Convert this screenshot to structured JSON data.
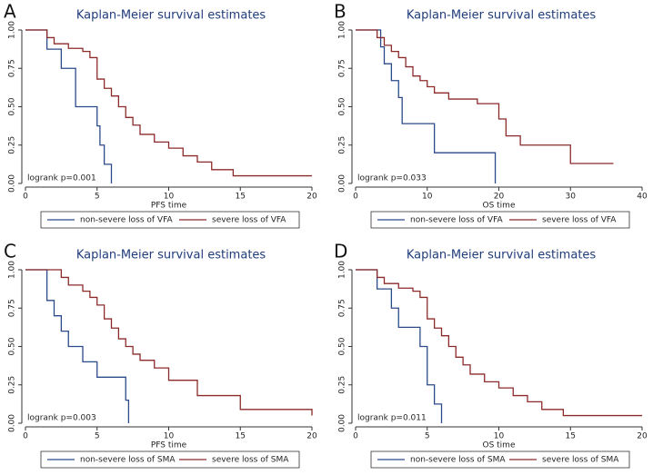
{
  "chart_data": [
    {
      "type": "line",
      "drawstyle": "steps-post",
      "panel_label": "A",
      "title": "Kaplan-Meier survival estimates",
      "xlabel": "PFS time",
      "annotation": "logrank p=0.001",
      "xlim": [
        0,
        20
      ],
      "ylim": [
        0,
        1
      ],
      "xticks": [
        0,
        5,
        10,
        15,
        20
      ],
      "yticks": [
        {
          "value": 0,
          "label": "0.00"
        },
        {
          "value": 0.25,
          "label": "0.25"
        },
        {
          "value": 0.5,
          "label": "0.50"
        },
        {
          "value": 0.75,
          "label": "0.75"
        },
        {
          "value": 1,
          "label": "1.00"
        }
      ],
      "series": [
        {
          "name": "non-severe loss of VFA",
          "color": "#2b4a8a",
          "x": [
            0,
            1.5,
            2.5,
            3.5,
            5.0,
            5.2,
            5.5,
            6.0
          ],
          "values": [
            1,
            0.875,
            0.75,
            0.5,
            0.375,
            0.25,
            0.125,
            0
          ]
        },
        {
          "name": "severe loss of VFA",
          "color": "#8c2a2a",
          "x": [
            0,
            1.5,
            2,
            3,
            4,
            4.5,
            5,
            5.5,
            6,
            6.5,
            7,
            7.5,
            8,
            9,
            10,
            11,
            12,
            13,
            14.5,
            20
          ],
          "values": [
            1,
            0.95,
            0.91,
            0.88,
            0.86,
            0.82,
            0.68,
            0.62,
            0.57,
            0.5,
            0.43,
            0.38,
            0.32,
            0.27,
            0.23,
            0.18,
            0.14,
            0.09,
            0.05,
            0.05
          ]
        }
      ]
    },
    {
      "type": "line",
      "drawstyle": "steps-post",
      "panel_label": "B",
      "title": "Kaplan-Meier survival estimates",
      "xlabel": "OS time",
      "annotation": "logrank p=0.033",
      "xlim": [
        0,
        40
      ],
      "ylim": [
        0,
        1
      ],
      "xticks": [
        0,
        10,
        20,
        30,
        40
      ],
      "yticks": [
        {
          "value": 0,
          "label": "0.00"
        },
        {
          "value": 0.25,
          "label": "0.25"
        },
        {
          "value": 0.5,
          "label": "0.50"
        },
        {
          "value": 0.75,
          "label": "0.75"
        },
        {
          "value": 1,
          "label": "1.00"
        }
      ],
      "series": [
        {
          "name": "non-severe loss of VFA",
          "color": "#2b4a8a",
          "x": [
            0,
            3.5,
            4,
            5,
            6,
            6.5,
            11,
            19.5
          ],
          "values": [
            1,
            0.89,
            0.78,
            0.67,
            0.56,
            0.39,
            0.2,
            0
          ]
        },
        {
          "name": "severe loss of VFA",
          "color": "#8c2a2a",
          "x": [
            0,
            3,
            4,
            5,
            6,
            7,
            8,
            9,
            10,
            11,
            13,
            17,
            20,
            21,
            23,
            30,
            36
          ],
          "values": [
            1,
            0.95,
            0.9,
            0.86,
            0.82,
            0.76,
            0.7,
            0.67,
            0.63,
            0.59,
            0.55,
            0.52,
            0.42,
            0.31,
            0.25,
            0.13,
            0.13
          ]
        }
      ]
    },
    {
      "type": "line",
      "drawstyle": "steps-post",
      "panel_label": "C",
      "title": "Kaplan-Meier survival estimates",
      "xlabel": "PFS time",
      "annotation": "logrank p=0.003",
      "xlim": [
        0,
        20
      ],
      "ylim": [
        0,
        1
      ],
      "xticks": [
        0,
        5,
        10,
        15,
        20
      ],
      "yticks": [
        {
          "value": 0,
          "label": "0.00"
        },
        {
          "value": 0.25,
          "label": "0.25"
        },
        {
          "value": 0.5,
          "label": "0.50"
        },
        {
          "value": 0.75,
          "label": "0.75"
        },
        {
          "value": 1,
          "label": "1.00"
        }
      ],
      "series": [
        {
          "name": "non-severe loss of SMA",
          "color": "#2b4a8a",
          "x": [
            0,
            1.5,
            2,
            2.5,
            3,
            4,
            5,
            7,
            7.2
          ],
          "values": [
            1,
            0.8,
            0.7,
            0.6,
            0.5,
            0.4,
            0.3,
            0.15,
            0
          ]
        },
        {
          "name": "severe loss of SMA",
          "color": "#8c2a2a",
          "x": [
            0,
            2.5,
            3,
            4,
            4.5,
            5,
            5.5,
            6,
            6.5,
            7,
            7.5,
            8,
            9,
            10,
            12,
            15,
            20
          ],
          "values": [
            1,
            0.95,
            0.9,
            0.86,
            0.82,
            0.77,
            0.68,
            0.62,
            0.55,
            0.5,
            0.45,
            0.41,
            0.36,
            0.28,
            0.18,
            0.09,
            0.05
          ]
        }
      ]
    },
    {
      "type": "line",
      "drawstyle": "steps-post",
      "panel_label": "D",
      "title": "Kaplan-Meier survival estimates",
      "xlabel": "OS time",
      "annotation": "logrank p=0.011",
      "xlim": [
        0,
        20
      ],
      "ylim": [
        0,
        1
      ],
      "xticks": [
        0,
        5,
        10,
        15,
        20
      ],
      "yticks": [
        {
          "value": 0,
          "label": "0.00"
        },
        {
          "value": 0.25,
          "label": "0.25"
        },
        {
          "value": 0.5,
          "label": "0.50"
        },
        {
          "value": 0.75,
          "label": "0.75"
        },
        {
          "value": 1,
          "label": "1.00"
        }
      ],
      "series": [
        {
          "name": "non-severe loss of SMA",
          "color": "#2b4a8a",
          "x": [
            0,
            1.5,
            2.5,
            3,
            4.5,
            5,
            5.5,
            6
          ],
          "values": [
            1,
            0.875,
            0.75,
            0.625,
            0.5,
            0.25,
            0.125,
            0
          ]
        },
        {
          "name": "severe loss of SMA",
          "color": "#8c2a2a",
          "x": [
            0,
            1.5,
            2,
            3,
            4,
            4.5,
            5,
            5.5,
            6,
            6.5,
            7,
            7.5,
            8,
            9,
            10,
            11,
            12,
            13,
            14.5,
            20
          ],
          "values": [
            1,
            0.95,
            0.91,
            0.88,
            0.86,
            0.82,
            0.68,
            0.62,
            0.57,
            0.5,
            0.43,
            0.38,
            0.32,
            0.27,
            0.23,
            0.18,
            0.14,
            0.09,
            0.05,
            0.05
          ]
        }
      ]
    }
  ]
}
